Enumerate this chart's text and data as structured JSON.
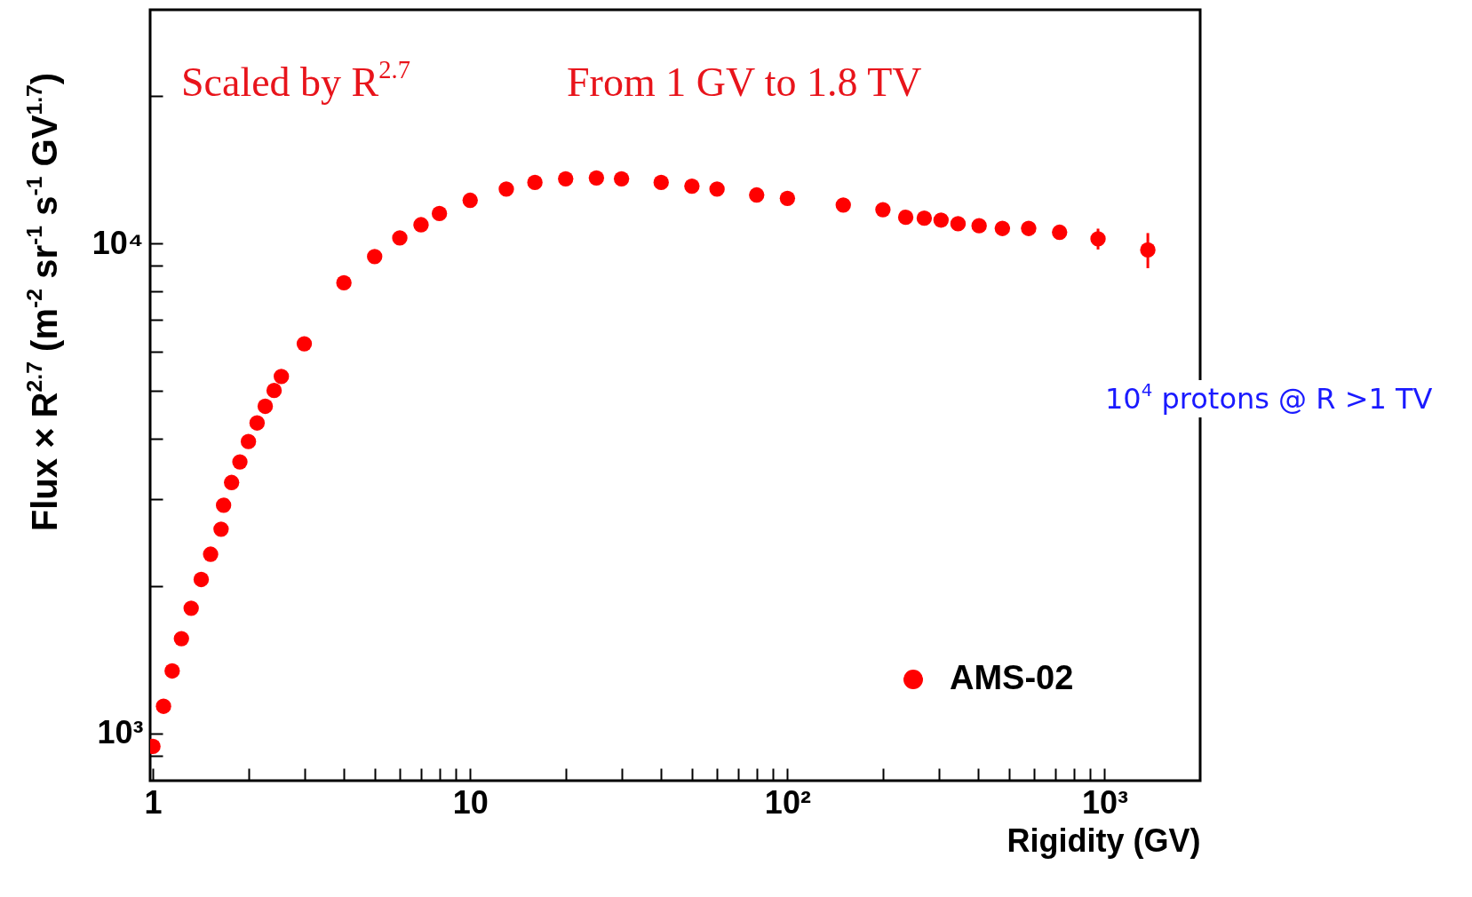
{
  "chart_data": {
    "type": "scatter",
    "xlabel": "Rigidity (GV)",
    "ylabel": "Flux × R$^{2.7}$ (m$^{-2}$ sr$^{-1}$ s$^{-1}$ GV$^{1.7}$)",
    "annotations": [
      "Scaled by R$^{2.7}$",
      "From 1 GV to 1.8 TV",
      "10$^{4}$ protons @ R >1 TV"
    ],
    "log": "xy",
    "grid": false,
    "legend": "bottom right",
    "marker": "circle",
    "xlim": [
      0.98,
      2000
    ],
    "ylim": [
      800,
      30000
    ],
    "xticks": [
      1,
      {
        "value": 2,
        "label": null
      },
      {
        "value": 3,
        "label": null
      },
      {
        "value": 4,
        "label": null
      },
      {
        "value": 5,
        "label": null
      },
      {
        "value": 6,
        "label": null
      },
      {
        "value": 7,
        "label": null
      },
      {
        "value": 8,
        "label": null
      },
      {
        "value": 9,
        "label": null
      },
      10,
      {
        "value": 20,
        "label": null
      },
      {
        "value": 30,
        "label": null
      },
      {
        "value": 40,
        "label": null
      },
      {
        "value": 50,
        "label": null
      },
      {
        "value": 60,
        "label": null
      },
      {
        "value": 70,
        "label": null
      },
      {
        "value": 80,
        "label": null
      },
      {
        "value": 90,
        "label": null
      },
      {
        "value": 100,
        "label": "10²"
      },
      {
        "value": 200,
        "label": null
      },
      {
        "value": 300,
        "label": null
      },
      {
        "value": 400,
        "label": null
      },
      {
        "value": 500,
        "label": null
      },
      {
        "value": 600,
        "label": null
      },
      {
        "value": 700,
        "label": null
      },
      {
        "value": 800,
        "label": null
      },
      {
        "value": 900,
        "label": null
      },
      {
        "value": 1000,
        "label": "10³"
      }
    ],
    "yticks": [
      {
        "value": 900,
        "label": null
      },
      {
        "value": 1000,
        "label": "10³"
      },
      {
        "value": 2000,
        "label": null
      },
      {
        "value": 3000,
        "label": null
      },
      {
        "value": 4000,
        "label": null
      },
      {
        "value": 5000,
        "label": null
      },
      {
        "value": 6000,
        "label": null
      },
      {
        "value": 7000,
        "label": null
      },
      {
        "value": 8000,
        "label": null
      },
      {
        "value": 9000,
        "label": null
      },
      {
        "value": 10000,
        "label": "10⁴"
      },
      {
        "value": 20000,
        "label": null
      }
    ],
    "series": [
      {
        "name": "AMS-02",
        "color": "#ff0000",
        "x": [
          1.0,
          1.08,
          1.15,
          1.23,
          1.32,
          1.42,
          1.52,
          1.64,
          1.67,
          1.77,
          1.88,
          2.0,
          2.13,
          2.26,
          2.41,
          2.54,
          3,
          4,
          5,
          6,
          7,
          8,
          10,
          13,
          16,
          20,
          25,
          30,
          40,
          50,
          60,
          80,
          100,
          150,
          200,
          236,
          270,
          305,
          345,
          402,
          476,
          576,
          721,
          953,
          1368
        ],
        "values": [
          940,
          1135,
          1340,
          1560,
          1800,
          2060,
          2320,
          2610,
          2920,
          3250,
          3580,
          3940,
          4300,
          4650,
          5010,
          5350,
          6240,
          8310,
          9400,
          10260,
          10920,
          11510,
          12250,
          12910,
          13320,
          13550,
          13610,
          13550,
          13320,
          13090,
          12910,
          12560,
          12360,
          11980,
          11720,
          11310,
          11260,
          11160,
          10970,
          10870,
          10730,
          10730,
          10540,
          10220,
          9700
        ],
        "errors": [
          null,
          null,
          null,
          null,
          null,
          null,
          null,
          null,
          null,
          null,
          null,
          null,
          null,
          null,
          null,
          null,
          null,
          null,
          null,
          null,
          null,
          null,
          null,
          null,
          null,
          null,
          null,
          null,
          null,
          null,
          null,
          null,
          null,
          null,
          null,
          null,
          null,
          null,
          null,
          null,
          null,
          null,
          null,
          500,
          800
        ]
      }
    ]
  }
}
